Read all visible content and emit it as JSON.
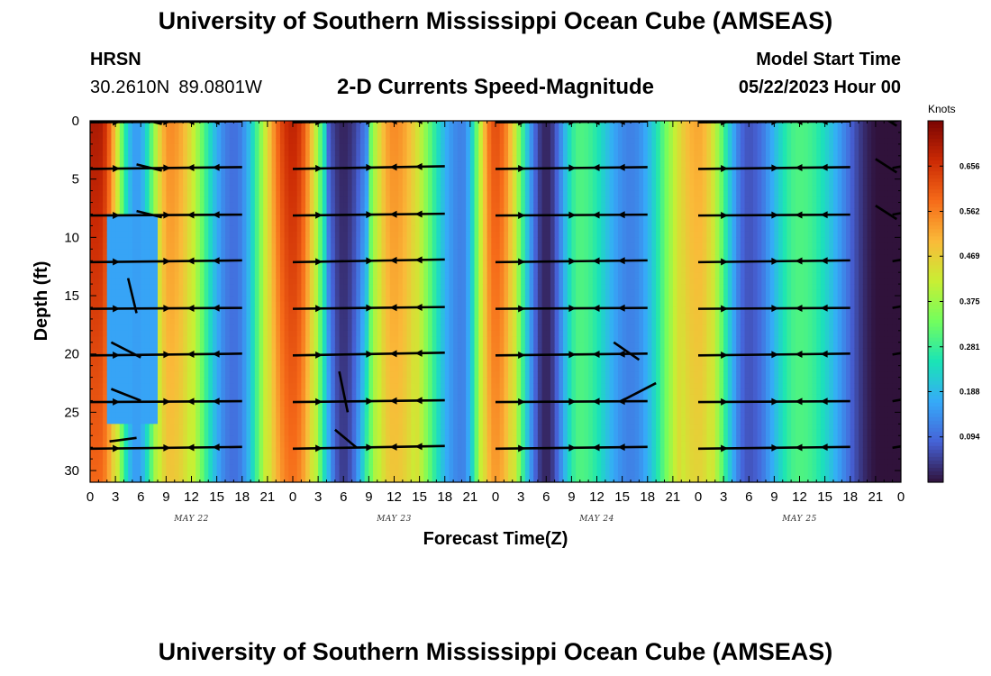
{
  "header": {
    "title": "University of Southern Mississippi Ocean Cube (AMSEAS)",
    "station": "HRSN",
    "lat": "30.2610N",
    "lon": "89.0801W",
    "subtitle": "2-D Currents Speed-Magnitude",
    "model_start_label": "Model Start Time",
    "model_start_value": "05/22/2023 Hour 00"
  },
  "footer": {
    "title": "University of Southern Mississippi Ocean Cube (AMSEAS)"
  },
  "chart_data": {
    "type": "heatmap",
    "title": "2-D Currents Speed-Magnitude",
    "xlabel": "Forecast Time(Z)",
    "ylabel": "Depth (ft)",
    "x_ticks": [
      "0",
      "3",
      "6",
      "9",
      "12",
      "15",
      "18",
      "21",
      "0",
      "3",
      "6",
      "9",
      "12",
      "15",
      "18",
      "21",
      "0",
      "3",
      "6",
      "9",
      "12",
      "15",
      "18",
      "21",
      "0",
      "3",
      "6",
      "9",
      "12",
      "15",
      "18",
      "21",
      "0"
    ],
    "x_range_hours": [
      0,
      96
    ],
    "date_labels": [
      {
        "label": "MAY 22",
        "hour": 12
      },
      {
        "label": "MAY 23",
        "hour": 36
      },
      {
        "label": "MAY 24",
        "hour": 60
      },
      {
        "label": "MAY 25",
        "hour": 84
      }
    ],
    "y_ticks": [
      "0",
      "5",
      "10",
      "15",
      "20",
      "25",
      "30"
    ],
    "ylim": [
      0,
      31
    ],
    "colorbar": {
      "unit": "Knots",
      "ticks": [
        "0.656",
        "0.562",
        "0.469",
        "0.375",
        "0.281",
        "0.188",
        "0.094"
      ],
      "tick_values": [
        0.656,
        0.562,
        0.469,
        0.375,
        0.281,
        0.188,
        0.094
      ],
      "range": [
        0.0,
        0.75
      ]
    },
    "speed_peaks_by_hour": [
      {
        "hour": 1,
        "value": 0.7
      },
      {
        "hour": 5.5,
        "value": 0.15
      },
      {
        "hour": 9.5,
        "value": 0.55
      },
      {
        "hour": 17,
        "value": 0.1
      },
      {
        "hour": 24,
        "value": 0.68
      },
      {
        "hour": 30,
        "value": 0.04
      },
      {
        "hour": 36,
        "value": 0.55
      },
      {
        "hour": 44,
        "value": 0.12
      },
      {
        "hour": 48,
        "value": 0.62
      },
      {
        "hour": 54,
        "value": 0.02
      },
      {
        "hour": 58,
        "value": 0.3
      },
      {
        "hour": 64,
        "value": 0.12
      },
      {
        "hour": 72,
        "value": 0.52
      },
      {
        "hour": 78,
        "value": 0.07
      },
      {
        "hour": 84,
        "value": 0.3
      },
      {
        "hour": 93.5,
        "value": 0.0
      }
    ],
    "vector_depths_ft": [
      0,
      4,
      8,
      12,
      16,
      20,
      24,
      28
    ],
    "vector_hours": [
      0,
      3,
      9,
      12,
      15,
      18,
      24,
      27,
      33,
      36,
      39,
      42,
      48,
      51,
      57,
      60,
      63,
      66,
      72,
      75,
      81,
      84,
      87,
      90,
      96
    ]
  },
  "colors": {
    "colormap": [
      "#30123b",
      "#4662d7",
      "#36aaf9",
      "#1ae4b6",
      "#72fe5e",
      "#c8ef34",
      "#faba39",
      "#f66b19",
      "#cb2a04",
      "#7a0403"
    ],
    "arrow": "#000000"
  }
}
